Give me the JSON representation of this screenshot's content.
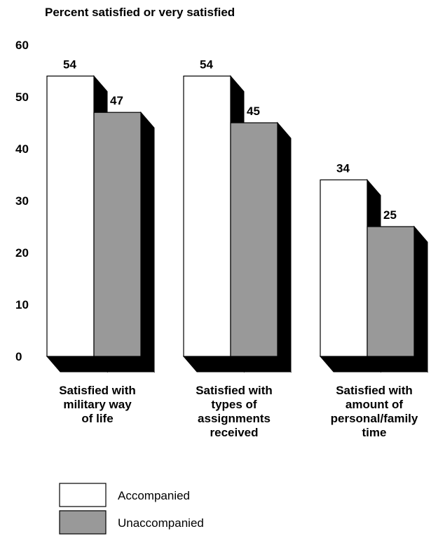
{
  "chart_data": {
    "type": "bar",
    "ylabel": "Percent satisfied or very satisfied",
    "ylim": [
      0,
      60
    ],
    "yticks": [
      0,
      10,
      20,
      30,
      40,
      50,
      60
    ],
    "categories": [
      [
        "Satisfied with",
        "military way",
        "of life"
      ],
      [
        "Satisfied with",
        "types of",
        "assignments",
        "received"
      ],
      [
        "Satisfied with",
        "amount of",
        "personal/family",
        "time"
      ]
    ],
    "series": [
      {
        "name": "Accompanied",
        "values": [
          54,
          54,
          34
        ],
        "color": "#ffffff"
      },
      {
        "name": "Unaccompanied",
        "values": [
          47,
          45,
          25
        ],
        "color": "#999999"
      }
    ],
    "legend_position": "bottom-left"
  }
}
